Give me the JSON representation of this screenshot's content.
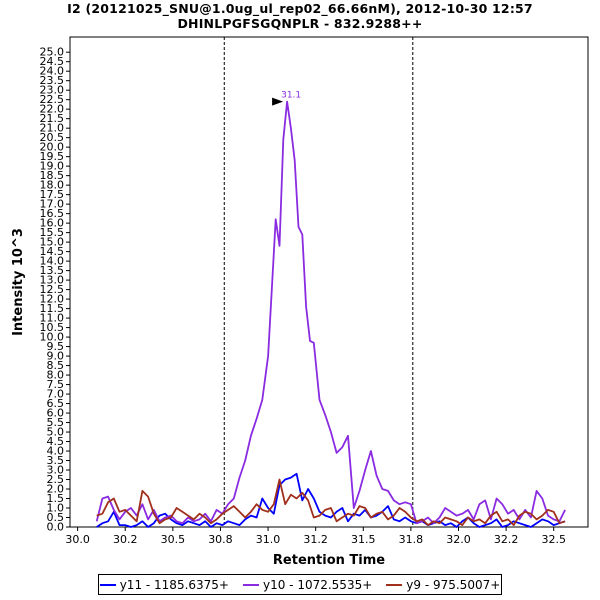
{
  "chart_data": {
    "type": "line",
    "title": "I2 (20121025_SNU@1.0ug_ul_rep02_66.66nM), 2012-10-30 12:57",
    "subtitle": "DHINLPGFSGQNPLR - 832.9288++",
    "xlabel": "Retention Time",
    "ylabel": "Intensity 10^3",
    "xlim": [
      29.96,
      32.68
    ],
    "ylim": [
      0,
      25.8
    ],
    "x_ticks": [
      "30.0",
      "30.2",
      "30.5",
      "30.8",
      "31.0",
      "31.2",
      "31.5",
      "31.8",
      "32.0",
      "32.2",
      "32.5"
    ],
    "x_tick_values": [
      30.0,
      30.25,
      30.5,
      30.75,
      31.0,
      31.25,
      31.5,
      31.75,
      32.0,
      32.25,
      32.5
    ],
    "y_ticks": [
      "0.0",
      "0.5",
      "1.0",
      "1.5",
      "2.0",
      "2.5",
      "3.0",
      "3.5",
      "4.0",
      "4.5",
      "5.0",
      "5.5",
      "6.0",
      "6.5",
      "7.0",
      "7.5",
      "8.0",
      "8.5",
      "9.0",
      "9.5",
      "10.0",
      "10.5",
      "11.0",
      "11.5",
      "12.0",
      "12.5",
      "13.0",
      "13.5",
      "14.0",
      "14.5",
      "15.0",
      "15.5",
      "16.0",
      "16.5",
      "17.0",
      "17.5",
      "18.0",
      "18.5",
      "19.0",
      "19.5",
      "20.0",
      "20.5",
      "21.0",
      "21.5",
      "22.0",
      "22.5",
      "23.0",
      "23.5",
      "24.0",
      "24.5",
      "25.0"
    ],
    "y_tick_values": [
      0,
      0.5,
      1,
      1.5,
      2,
      2.5,
      3,
      3.5,
      4,
      4.5,
      5,
      5.5,
      6,
      6.5,
      7,
      7.5,
      8,
      8.5,
      9,
      9.5,
      10,
      10.5,
      11,
      11.5,
      12,
      12.5,
      13,
      13.5,
      14,
      14.5,
      15,
      15.5,
      16,
      16.5,
      17,
      17.5,
      18,
      18.5,
      19,
      19.5,
      20,
      20.5,
      21,
      21.5,
      22,
      22.5,
      23,
      23.5,
      24,
      24.5,
      25
    ],
    "vertical_lines": [
      30.77,
      31.76
    ],
    "peak_annotation": {
      "label": "31.1",
      "x": 31.1,
      "y": 22.4
    },
    "series": [
      {
        "name": "y11 - 1185.6375+",
        "color": "#0000ff",
        "x": [
          30.1,
          30.13,
          30.16,
          30.19,
          30.22,
          30.25,
          30.28,
          30.31,
          30.34,
          30.37,
          30.4,
          30.43,
          30.46,
          30.49,
          30.52,
          30.55,
          30.58,
          30.61,
          30.64,
          30.67,
          30.7,
          30.73,
          30.76,
          30.79,
          30.82,
          30.85,
          30.88,
          30.91,
          30.94,
          30.97,
          31.0,
          31.03,
          31.06,
          31.09,
          31.12,
          31.15,
          31.18,
          31.21,
          31.24,
          31.27,
          31.3,
          31.33,
          31.36,
          31.39,
          31.42,
          31.45,
          31.48,
          31.51,
          31.54,
          31.57,
          31.6,
          31.63,
          31.66,
          31.69,
          31.72,
          31.75,
          31.78,
          31.81,
          31.84,
          31.87,
          31.9,
          31.93,
          31.96,
          31.99,
          32.02,
          32.05,
          32.08,
          32.11,
          32.14,
          32.17,
          32.2,
          32.23,
          32.26,
          32.29,
          32.32,
          32.35,
          32.38,
          32.41,
          32.44,
          32.47,
          32.5,
          32.53,
          32.56
        ],
        "y": [
          0.0,
          0.2,
          0.3,
          0.8,
          0.1,
          0.1,
          0.0,
          0.1,
          0.3,
          0.0,
          0.2,
          0.6,
          0.7,
          0.4,
          0.2,
          0.1,
          0.3,
          0.2,
          0.1,
          0.3,
          0.0,
          0.2,
          0.1,
          0.3,
          0.2,
          0.1,
          0.4,
          0.6,
          0.5,
          1.5,
          1.0,
          0.7,
          2.2,
          2.5,
          2.6,
          2.8,
          1.4,
          2.0,
          1.5,
          0.8,
          0.6,
          0.5,
          0.8,
          1.0,
          0.3,
          0.7,
          0.6,
          0.9,
          0.5,
          0.6,
          0.8,
          1.1,
          0.4,
          0.3,
          0.5,
          0.3,
          0.2,
          0.3,
          0.1,
          0.2,
          0.3,
          0.1,
          0.2,
          0.0,
          0.3,
          0.5,
          0.2,
          0.0,
          0.1,
          0.2,
          0.4,
          0.0,
          0.1,
          0.3,
          0.2,
          0.1,
          0.0,
          0.2,
          0.4,
          0.3,
          0.1,
          0.2,
          0.3
        ]
      },
      {
        "name": "y10 - 1072.5535+",
        "color": "#8a2be2",
        "x": [
          30.1,
          30.13,
          30.16,
          30.19,
          30.22,
          30.25,
          30.28,
          30.31,
          30.34,
          30.37,
          30.4,
          30.43,
          30.46,
          30.49,
          30.52,
          30.55,
          30.58,
          30.61,
          30.64,
          30.67,
          30.7,
          30.73,
          30.76,
          30.79,
          30.82,
          30.85,
          30.88,
          30.91,
          30.94,
          30.97,
          31.0,
          31.02,
          31.04,
          31.06,
          31.08,
          31.1,
          31.12,
          31.14,
          31.16,
          31.18,
          31.2,
          31.22,
          31.24,
          31.27,
          31.3,
          31.33,
          31.36,
          31.39,
          31.42,
          31.45,
          31.48,
          31.51,
          31.54,
          31.57,
          31.6,
          31.63,
          31.66,
          31.69,
          31.72,
          31.75,
          31.78,
          31.81,
          31.84,
          31.87,
          31.9,
          31.93,
          31.96,
          31.99,
          32.02,
          32.05,
          32.08,
          32.11,
          32.14,
          32.17,
          32.2,
          32.23,
          32.26,
          32.29,
          32.32,
          32.35,
          32.38,
          32.41,
          32.44,
          32.47,
          32.5,
          32.53,
          32.56
        ],
        "y": [
          0.3,
          1.5,
          1.6,
          0.9,
          0.4,
          0.8,
          1.0,
          0.6,
          1.2,
          0.4,
          0.9,
          0.3,
          0.5,
          0.6,
          0.3,
          0.2,
          0.5,
          0.3,
          0.4,
          0.7,
          0.3,
          0.9,
          0.7,
          1.2,
          1.5,
          2.6,
          3.5,
          4.8,
          5.7,
          6.7,
          9.0,
          12.6,
          16.2,
          14.8,
          20.4,
          22.4,
          21.0,
          19.3,
          15.8,
          15.4,
          11.6,
          9.8,
          9.7,
          6.7,
          5.9,
          5.0,
          3.9,
          4.2,
          4.8,
          1.0,
          1.9,
          3.0,
          4.0,
          2.7,
          2.0,
          1.9,
          1.4,
          1.2,
          1.3,
          1.2,
          0.2,
          0.3,
          0.5,
          0.2,
          0.5,
          1.0,
          0.8,
          0.6,
          0.7,
          0.9,
          0.4,
          1.2,
          1.4,
          0.4,
          1.5,
          1.2,
          0.7,
          0.9,
          0.4,
          0.9,
          0.5,
          1.9,
          1.5,
          0.6,
          0.4,
          0.3,
          0.9
        ]
      },
      {
        "name": "y9 - 975.5007+",
        "color": "#a0301c",
        "x": [
          30.1,
          30.13,
          30.16,
          30.19,
          30.22,
          30.25,
          30.28,
          30.31,
          30.34,
          30.37,
          30.4,
          30.43,
          30.46,
          30.49,
          30.52,
          30.55,
          30.58,
          30.61,
          30.64,
          30.67,
          30.7,
          30.73,
          30.76,
          30.79,
          30.82,
          30.85,
          30.88,
          30.91,
          30.94,
          30.97,
          31.0,
          31.03,
          31.06,
          31.09,
          31.12,
          31.15,
          31.18,
          31.21,
          31.24,
          31.27,
          31.3,
          31.33,
          31.36,
          31.39,
          31.42,
          31.45,
          31.48,
          31.51,
          31.54,
          31.57,
          31.6,
          31.63,
          31.66,
          31.69,
          31.72,
          31.75,
          31.78,
          31.81,
          31.84,
          31.87,
          31.9,
          31.93,
          31.96,
          31.99,
          32.02,
          32.05,
          32.08,
          32.11,
          32.14,
          32.17,
          32.2,
          32.23,
          32.26,
          32.29,
          32.32,
          32.35,
          32.38,
          32.41,
          32.44,
          32.47,
          32.5,
          32.53,
          32.56
        ],
        "y": [
          0.6,
          0.7,
          1.3,
          1.5,
          0.8,
          0.9,
          0.6,
          0.3,
          1.9,
          1.6,
          0.7,
          0.2,
          0.4,
          0.5,
          1.0,
          0.8,
          0.6,
          0.4,
          0.7,
          0.5,
          0.2,
          0.4,
          0.7,
          0.9,
          1.1,
          0.8,
          0.5,
          0.8,
          1.2,
          0.9,
          0.8,
          1.2,
          2.5,
          1.2,
          1.7,
          1.5,
          1.8,
          1.4,
          0.5,
          0.6,
          0.9,
          1.0,
          0.3,
          0.5,
          0.7,
          0.6,
          1.1,
          1.0,
          0.5,
          0.7,
          0.8,
          0.4,
          0.6,
          1.0,
          0.8,
          0.5,
          0.3,
          0.4,
          0.1,
          0.3,
          0.2,
          0.5,
          0.4,
          0.3,
          0.1,
          0.5,
          0.3,
          0.4,
          0.2,
          0.6,
          0.8,
          0.3,
          0.4,
          0.1,
          0.6,
          0.8,
          0.7,
          0.4,
          0.6,
          0.9,
          0.8,
          0.2,
          0.3
        ]
      }
    ]
  }
}
